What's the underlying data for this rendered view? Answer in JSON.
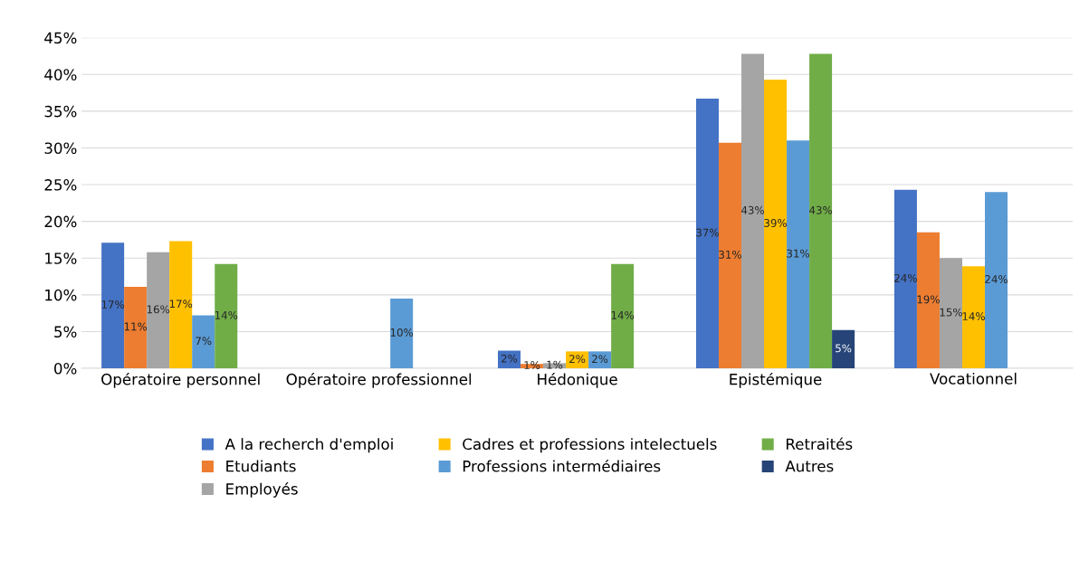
{
  "chart_data": {
    "type": "bar",
    "categories": [
      "Opératoire personnel",
      "Opératoire professionnel",
      "Hédonique",
      "Epistémique",
      "Vocationnel"
    ],
    "ylim": [
      0,
      45
    ],
    "yticks": [
      {
        "value": 0,
        "label": "0%"
      },
      {
        "value": 5,
        "label": "5%"
      },
      {
        "value": 10,
        "label": "10%"
      },
      {
        "value": 15,
        "label": "15%"
      },
      {
        "value": 20,
        "label": "20%"
      },
      {
        "value": 25,
        "label": "25%"
      },
      {
        "value": 30,
        "label": "30%"
      },
      {
        "value": 35,
        "label": "35%"
      },
      {
        "value": 40,
        "label": "40%"
      },
      {
        "value": 45,
        "label": "45%"
      }
    ],
    "grid": "y",
    "legend": "bottom",
    "series": [
      {
        "name": "A la recherch d'emploi",
        "color": "#4472c4",
        "values": [
          17.1,
          null,
          2.4,
          36.7,
          24.3
        ],
        "value_labels": [
          "17%",
          null,
          "2%",
          "37%",
          "24%"
        ]
      },
      {
        "name": "Etudiants",
        "color": "#ed7d31",
        "values": [
          11.1,
          null,
          0.6,
          30.7,
          18.5
        ],
        "value_labels": [
          "11%",
          null,
          "1%",
          "31%",
          "19%"
        ]
      },
      {
        "name": "Employés",
        "color": "#a5a5a5",
        "values": [
          15.8,
          null,
          0.7,
          42.8,
          15.0
        ],
        "value_labels": [
          "16%",
          null,
          "1%",
          "43%",
          "15%"
        ]
      },
      {
        "name": "Cadres et professions intelectuels",
        "color": "#ffc000",
        "values": [
          17.3,
          null,
          2.3,
          39.3,
          13.9
        ],
        "value_labels": [
          "17%",
          null,
          "2%",
          "39%",
          "14%"
        ]
      },
      {
        "name": "Professions intermédiaires",
        "color": "#5b9bd5",
        "values": [
          7.2,
          9.5,
          2.3,
          31.0,
          24.0
        ],
        "value_labels": [
          "7%",
          "10%",
          "2%",
          "31%",
          "24%"
        ]
      },
      {
        "name": "Retraités",
        "color": "#70ad47",
        "values": [
          14.2,
          null,
          14.2,
          42.8,
          null
        ],
        "value_labels": [
          "14%",
          null,
          "14%",
          "43%",
          null
        ]
      },
      {
        "name": "Autres",
        "color": "#264478",
        "values": [
          null,
          null,
          null,
          5.2,
          null
        ],
        "value_labels": [
          null,
          null,
          null,
          "5%",
          null
        ]
      }
    ]
  }
}
